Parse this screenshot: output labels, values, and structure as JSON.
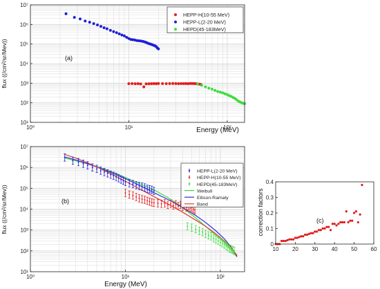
{
  "colors": {
    "hepp_h": "#e31a1c",
    "hepp_l": "#1f1fd6",
    "hepd": "#3ddc3d",
    "weibull": "#3ad63a",
    "ellison": "#2a2ae0",
    "band": "#e03a2a",
    "cf": "#e31a1c",
    "grid": "#d9d9d9"
  },
  "chart_data": [
    {
      "type": "scatter",
      "panel_label": "(a)",
      "xlabel": "Energy (MeV)",
      "ylabel": "flux ((/cm²/sr/Mev))",
      "x_scale": "log",
      "y_scale": "log",
      "xlim": [
        1,
        150
      ],
      "ylim": [
        10,
        10000000
      ],
      "x_ticks": [
        {
          "v": 1,
          "t": "10⁰"
        },
        {
          "v": 10,
          "t": "10¹"
        },
        {
          "v": 100,
          "t": "10²"
        }
      ],
      "y_ticks": [
        {
          "v": 10,
          "t": "10¹"
        },
        {
          "v": 100,
          "t": "10²"
        },
        {
          "v": 1000,
          "t": "10³"
        },
        {
          "v": 10000,
          "t": "10⁴"
        },
        {
          "v": 100000,
          "t": "10⁵"
        },
        {
          "v": 1000000,
          "t": "10⁶"
        },
        {
          "v": 10000000,
          "t": "10⁷"
        }
      ],
      "grid": true,
      "legend_position": "top-right",
      "series": [
        {
          "name": "HEPP-H(10-55 MeV)",
          "color_key": "hepp_h",
          "x": [
            10,
            10.8,
            11.6,
            12.4,
            13.2,
            14.2,
            15,
            16,
            17,
            18,
            19,
            20,
            22,
            24,
            26,
            28,
            30,
            32,
            34,
            36,
            38,
            40,
            42,
            44,
            46,
            48,
            50,
            52,
            54
          ],
          "y": [
            950,
            960,
            940,
            950,
            920,
            650,
            930,
            940,
            950,
            960,
            950,
            970,
            960,
            950,
            960,
            970,
            960,
            950,
            960,
            955,
            960,
            950,
            965,
            970,
            960,
            950,
            920,
            900,
            860
          ]
        },
        {
          "name": "HEPP-L(2-20 MeV)",
          "color_key": "hepp_l",
          "x": [
            2.3,
            2.8,
            3.2,
            3.6,
            4,
            4.4,
            4.8,
            5.2,
            5.6,
            6,
            6.5,
            7,
            7.5,
            8,
            8.5,
            9,
            9.5,
            10,
            10.5,
            11,
            11.5,
            12,
            12.5,
            13,
            13.5,
            14,
            14.5,
            15,
            15.5,
            16,
            16.5,
            17,
            17.5,
            18,
            18.5,
            19,
            19.5,
            20
          ],
          "y": [
            3500000,
            2300000,
            1900000,
            1500000,
            1300000,
            1100000,
            950000,
            800000,
            680000,
            600000,
            500000,
            430000,
            380000,
            330000,
            290000,
            260000,
            220000,
            190000,
            170000,
            165000,
            160000,
            150000,
            148000,
            145000,
            140000,
            135000,
            128000,
            120000,
            112000,
            105000,
            100000,
            95000,
            90000,
            85000,
            80000,
            73000,
            63000,
            56000
          ]
        },
        {
          "name": "HEPD(45-183MeV)",
          "color_key": "hepd",
          "x": [
            50,
            55,
            60,
            65,
            70,
            75,
            80,
            85,
            90,
            95,
            100,
            105,
            110,
            115,
            120,
            125,
            130,
            135,
            140,
            145,
            150
          ],
          "y": [
            900,
            780,
            650,
            560,
            500,
            430,
            380,
            350,
            320,
            290,
            260,
            230,
            210,
            185,
            165,
            140,
            120,
            110,
            100,
            95,
            90
          ]
        }
      ]
    },
    {
      "type": "scatter",
      "panel_label": "(b)",
      "xlabel": "Energy (MeV)",
      "ylabel": "flux ((/cm²/sr/Mev))",
      "x_scale": "log",
      "y_scale": "log",
      "xlim": [
        1,
        180
      ],
      "ylim": [
        10,
        10000000
      ],
      "x_ticks": [
        {
          "v": 1,
          "t": "10⁰"
        },
        {
          "v": 10,
          "t": "10¹"
        },
        {
          "v": 100,
          "t": "10²"
        }
      ],
      "y_ticks": [
        {
          "v": 10,
          "t": "10¹"
        },
        {
          "v": 100,
          "t": "10²"
        },
        {
          "v": 1000,
          "t": "10³"
        },
        {
          "v": 10000,
          "t": "10⁴"
        },
        {
          "v": 100000,
          "t": "10⁵"
        },
        {
          "v": 1000000,
          "t": "10⁶"
        },
        {
          "v": 10000000,
          "t": "10⁷"
        }
      ],
      "grid": true,
      "legend_position": "top-right",
      "series": [
        {
          "name": "HEPP-L(2-20 MeV)",
          "color_key": "hepp_l",
          "errorbars": true,
          "x": [
            2.3,
            2.8,
            3.2,
            3.6,
            4,
            4.5,
            5,
            5.5,
            6,
            6.5,
            7,
            7.5,
            8,
            8.5,
            9,
            9.5,
            10,
            11,
            12,
            13,
            14,
            15,
            16,
            17,
            18,
            19,
            20
          ],
          "y": [
            3000000,
            2100000,
            1800000,
            1500000,
            1250000,
            1000000,
            850000,
            700000,
            600000,
            520000,
            450000,
            400000,
            350000,
            300000,
            260000,
            230000,
            200000,
            175000,
            160000,
            140000,
            130000,
            120000,
            110000,
            95000,
            90000,
            85000,
            75000
          ]
        },
        {
          "name": "HEPP-H(10-55 MeV)",
          "color_key": "hepp_h",
          "errorbars": true,
          "x": [
            10,
            11,
            12,
            13,
            14,
            15,
            16,
            17,
            18,
            19,
            20,
            22,
            24,
            26,
            28,
            30,
            32,
            34,
            36,
            38,
            40,
            42,
            44,
            46,
            48,
            50,
            52,
            54
          ],
          "y": [
            60000,
            50000,
            45000,
            38000,
            33000,
            30000,
            28000,
            25000,
            23000,
            21000,
            20000,
            19000,
            18000,
            19000,
            16000,
            18000,
            15000,
            17000,
            14000,
            16000,
            13000,
            15000,
            12000,
            14000,
            11000,
            12000,
            10000,
            9000
          ]
        },
        {
          "name": "HEPD(45-183MeV)",
          "color_key": "hepd",
          "errorbars": true,
          "x": [
            45,
            50,
            55,
            60,
            65,
            70,
            75,
            80,
            85,
            90,
            95,
            100,
            105,
            110,
            115,
            120,
            125,
            130,
            135,
            140
          ],
          "y": [
            1500,
            1300,
            1100,
            900,
            800,
            650,
            550,
            500,
            400,
            350,
            300,
            260,
            230,
            200,
            170,
            150,
            130,
            120,
            110,
            100
          ]
        },
        {
          "name": "Weibull",
          "color_key": "weibull",
          "line": true,
          "x": [
            2.3,
            3,
            4,
            5,
            7,
            10,
            14,
            20,
            30,
            40,
            55,
            70,
            90,
            110,
            130,
            150
          ],
          "y": [
            2800000,
            2100000,
            1500000,
            1100000,
            650000,
            330000,
            170000,
            85000,
            30000,
            12000,
            3800,
            1500,
            560,
            250,
            110,
            50
          ]
        },
        {
          "name": "Ellison-Ramaty",
          "color_key": "ellison",
          "line": true,
          "x": [
            2.3,
            3,
            4,
            5,
            7,
            10,
            14,
            20,
            30,
            40,
            55,
            70,
            90,
            110,
            130,
            150
          ],
          "y": [
            3200000,
            2300000,
            1500000,
            1050000,
            580000,
            290000,
            140000,
            62000,
            25000,
            12000,
            5000,
            2300,
            900,
            380,
            150,
            55
          ]
        },
        {
          "name": "Band",
          "color_key": "band",
          "line": true,
          "x": [
            2.3,
            3,
            4,
            5,
            7,
            10,
            14,
            20,
            30,
            40,
            55,
            70,
            90,
            110,
            130,
            150
          ],
          "y": [
            4200000,
            2800000,
            1650000,
            1050000,
            500000,
            220000,
            95000,
            40000,
            15000,
            7200,
            3000,
            1500,
            650,
            300,
            140,
            60
          ]
        }
      ]
    },
    {
      "type": "scatter",
      "panel_label": "(c)",
      "xlabel": "",
      "ylabel": "correction factors",
      "xlim": [
        10,
        60
      ],
      "ylim": [
        0,
        0.4
      ],
      "x_ticks": [
        {
          "v": 10,
          "t": "10"
        },
        {
          "v": 20,
          "t": "20"
        },
        {
          "v": 30,
          "t": "30"
        },
        {
          "v": 40,
          "t": "40"
        },
        {
          "v": 50,
          "t": "50"
        },
        {
          "v": 60,
          "t": "60"
        }
      ],
      "y_ticks": [
        {
          "v": 0,
          "t": "0"
        },
        {
          "v": 0.1,
          "t": "0.1"
        },
        {
          "v": 0.2,
          "t": "0.2"
        },
        {
          "v": 0.3,
          "t": "0.3"
        },
        {
          "v": 0.4,
          "t": "0.4"
        }
      ],
      "grid": false,
      "series": [
        {
          "name": "",
          "color_key": "cf",
          "x": [
            10,
            11,
            12,
            13,
            14,
            15,
            16,
            17,
            18,
            19,
            20,
            21,
            22,
            23,
            24,
            25,
            26,
            27,
            28,
            29,
            30,
            31,
            32,
            33,
            34,
            35,
            36,
            37,
            38,
            39,
            40,
            41,
            42,
            43,
            44,
            45,
            46,
            47,
            48,
            49,
            50,
            51,
            52,
            53,
            54
          ],
          "y": [
            0,
            0,
            0,
            0.02,
            0.02,
            0.02,
            0.025,
            0.03,
            0.03,
            0.03,
            0.04,
            0.04,
            0.045,
            0.05,
            0.05,
            0.06,
            0.06,
            0.065,
            0.07,
            0.07,
            0.08,
            0.08,
            0.09,
            0.09,
            0.1,
            0.1,
            0.11,
            0.11,
            0.09,
            0.13,
            0.13,
            0.12,
            0.13,
            0.14,
            0.14,
            0.14,
            0.21,
            0.14,
            0.15,
            0.15,
            0.2,
            0.21,
            0.14,
            0.19,
            0.38
          ]
        }
      ]
    }
  ]
}
